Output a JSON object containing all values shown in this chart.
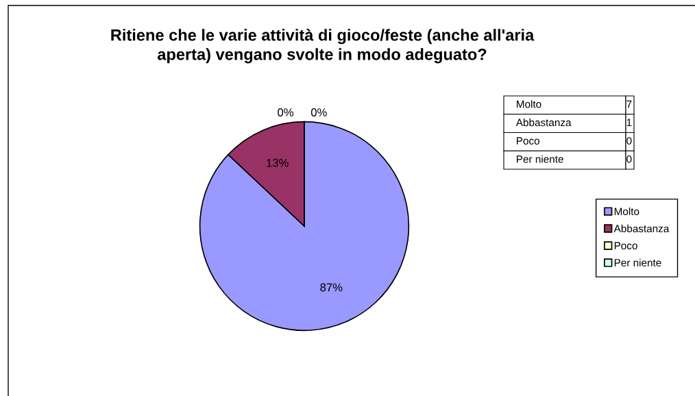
{
  "chart_data": {
    "type": "pie",
    "title": "Ritiene che le varie attività di gioco/feste (anche all'aria\naperta) vengano svolte in modo adeguato?",
    "categories": [
      "Molto",
      "Abbastanza",
      "Poco",
      "Per niente"
    ],
    "values": [
      87,
      13,
      0,
      0
    ],
    "annotations": [
      "7",
      "1",
      "0",
      "0"
    ],
    "value_labels": [
      "87%",
      "13%",
      "0%",
      "0%"
    ],
    "colors": [
      "#9999ff",
      "#993366",
      "#ffffcc",
      "#ccffff"
    ],
    "legend": "right"
  }
}
